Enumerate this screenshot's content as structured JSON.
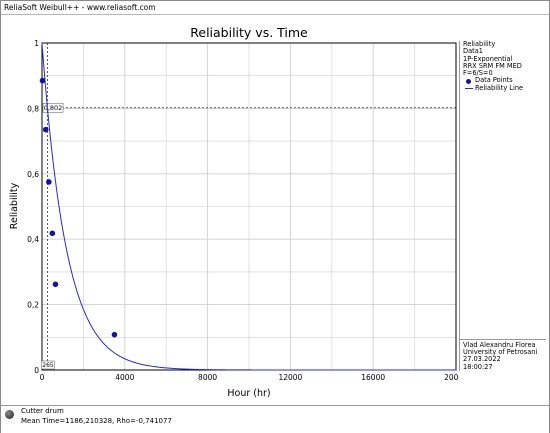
{
  "window": {
    "title": "ReliaSoft Weibull++ - www.reliasoft.com"
  },
  "chart_data": {
    "type": "line",
    "title": "Reliability vs. Time",
    "xlabel": "Hour (hr)",
    "ylabel": "Reliability",
    "xlim": [
      0,
      20000
    ],
    "ylim": [
      0,
      1
    ],
    "x_ticks": [
      0,
      4000,
      8000,
      12000,
      16000,
      20000
    ],
    "y_ticks": [
      "0",
      "0,2",
      "0,4",
      "0,6",
      "0,8",
      "1"
    ],
    "grid": true,
    "model": "1P-Exponential",
    "series": [
      {
        "name": "Data Points",
        "kind": "scatter",
        "color": "#1414a0",
        "x": [
          25,
          180,
          330,
          500,
          650,
          3500
        ],
        "y": [
          0.885,
          0.735,
          0.575,
          0.418,
          0.262,
          0.108
        ]
      },
      {
        "name": "Reliability Line",
        "kind": "line",
        "color": "#2a2ad0",
        "function": "exp(-t/1186.210328)",
        "mean_time": 1186.210328
      }
    ],
    "annotations": [
      {
        "text": "0,802",
        "x": 0,
        "y": 0.802,
        "crosshair": "horizontal"
      },
      {
        "text": "265",
        "x": 265,
        "y": 0,
        "crosshair": "vertical"
      }
    ]
  },
  "info_panel": {
    "heading": "Reliability",
    "lines": [
      "Data1",
      "1P-Exponential",
      "RRX SRM FM MED",
      "F=6/S=0"
    ],
    "legend": [
      {
        "label": "Data Points",
        "marker": "dot"
      },
      {
        "label": "Reliability Line",
        "marker": "line"
      }
    ],
    "analyst": [
      "Vlad Alexandru Florea",
      "University of Petrosani",
      "27.03.2022",
      "18:00:27"
    ]
  },
  "status": {
    "name": "Cutter drum",
    "stats": "Mean Time=1186,210328, Rho=-0,741077"
  }
}
